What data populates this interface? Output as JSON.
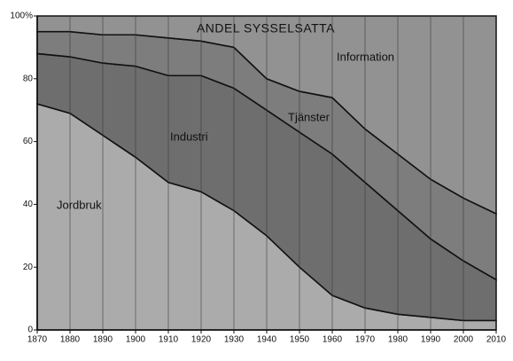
{
  "chart_data": {
    "type": "stacked-area",
    "title": "ANDEL SYSSELSATTA",
    "x": [
      1870,
      1880,
      1890,
      1900,
      1910,
      1920,
      1930,
      1940,
      1950,
      1960,
      1970,
      1980,
      1990,
      2000,
      2010
    ],
    "xlim": [
      1870,
      2010
    ],
    "xticks": [
      1870,
      1880,
      1890,
      1900,
      1910,
      1920,
      1930,
      1940,
      1950,
      1960,
      1970,
      1980,
      1990,
      2000,
      2010
    ],
    "ylim": [
      0,
      100
    ],
    "yticks": [
      0,
      20,
      40,
      60,
      80,
      {
        "value": 100,
        "label": "100%"
      }
    ],
    "grid": true,
    "series": [
      {
        "name": "Jordbruk",
        "color": "#ababab",
        "values": [
          72,
          69,
          62,
          55,
          47,
          44,
          38,
          30,
          20,
          11,
          7,
          5,
          4,
          3,
          3
        ]
      },
      {
        "name": "Industri",
        "color": "#6e6e6e",
        "values": [
          16,
          18,
          23,
          29,
          34,
          37,
          39,
          40,
          43,
          45,
          40,
          33,
          25,
          19,
          13
        ]
      },
      {
        "name": "Tjänster",
        "color": "#7d7d7d",
        "values": [
          7,
          8,
          9,
          10,
          12,
          11,
          13,
          10,
          13,
          18,
          17,
          18,
          19,
          20,
          21
        ]
      },
      {
        "name": "Information",
        "color": "#929292",
        "values": [
          5,
          5,
          6,
          6,
          7,
          8,
          10,
          20,
          24,
          26,
          36,
          44,
          52,
          58,
          63
        ]
      }
    ]
  }
}
